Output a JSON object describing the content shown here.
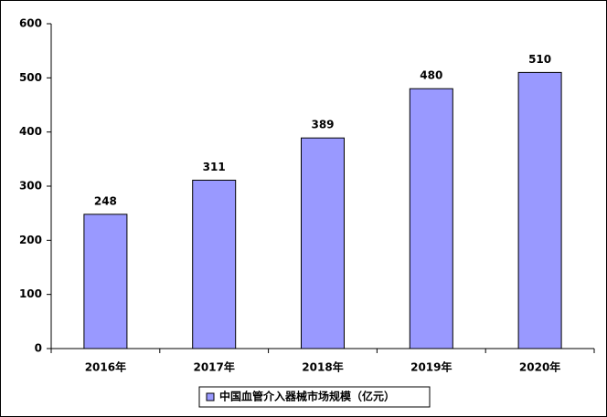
{
  "chart_data": {
    "type": "bar",
    "categories": [
      "2016年",
      "2017年",
      "2018年",
      "2019年",
      "2020年"
    ],
    "series": [
      {
        "name": "中国血管介入器械市场规模（亿元）",
        "color": "#9999ff",
        "values": [
          248,
          311,
          389,
          480,
          510
        ]
      }
    ],
    "ylim": [
      0,
      600
    ],
    "yticks": [
      0,
      100,
      200,
      300,
      400,
      500,
      600
    ],
    "grid": false,
    "legend": "bottom"
  }
}
